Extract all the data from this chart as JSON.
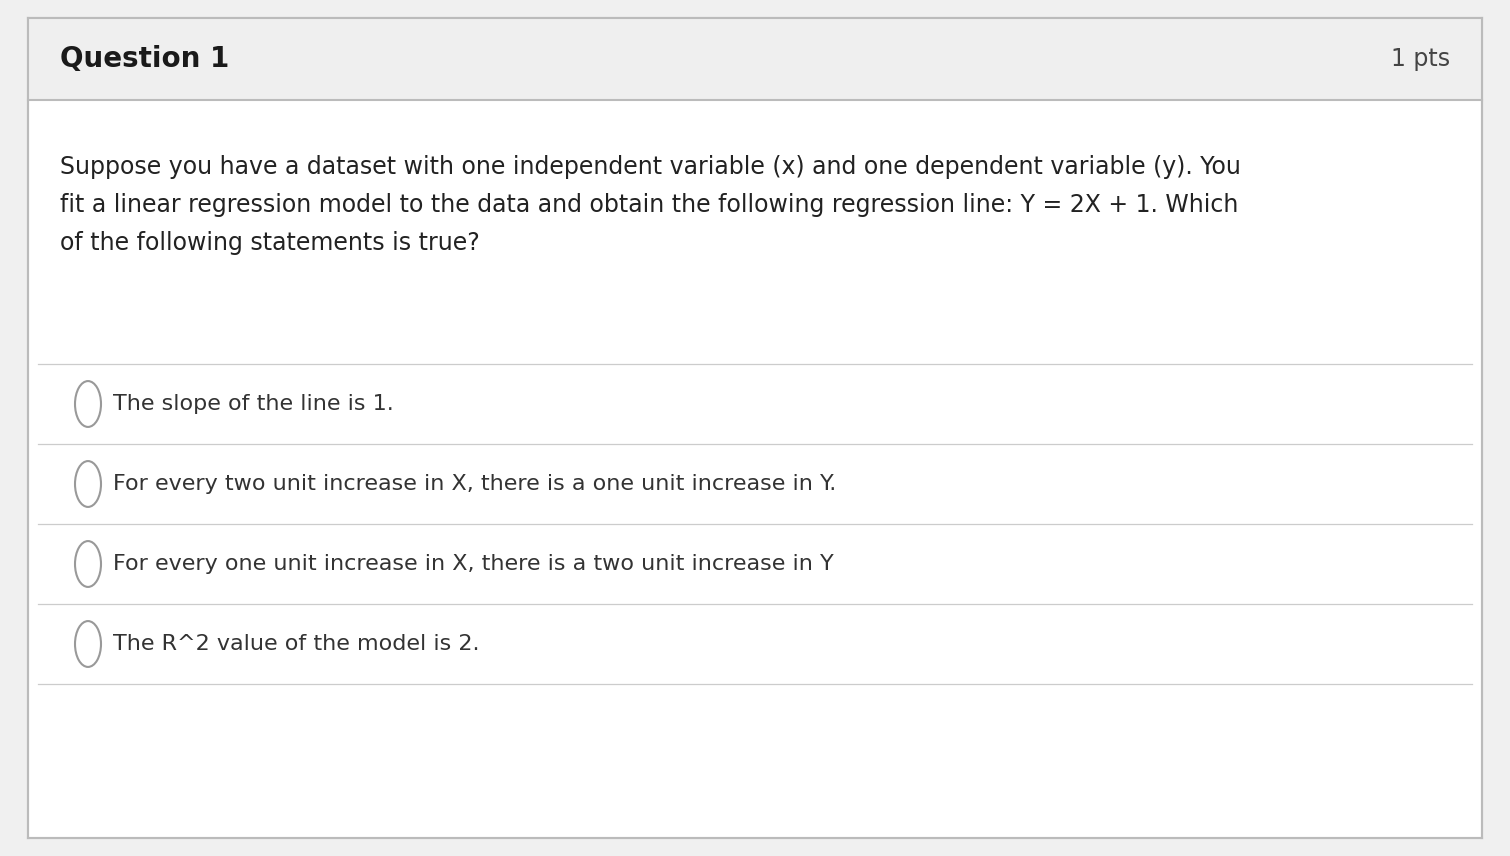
{
  "title": "Question 1",
  "pts": "1 pts",
  "question_text_lines": [
    "Suppose you have a dataset with one independent variable (x) and one dependent variable (y). You",
    "fit a linear regression model to the data and obtain the following regression line: Y = 2X + 1. Which",
    "of the following statements is true?"
  ],
  "options": [
    "The slope of the line is 1.",
    "For every two unit increase in X, there is a one unit increase in Y.",
    "For every one unit increase in X, there is a two unit increase in Y",
    "The R^2 value of the model is 2."
  ],
  "outer_bg": "#f0f0f0",
  "inner_bg": "#ffffff",
  "header_bg": "#efefef",
  "border_color": "#bbbbbb",
  "divider_color": "#cccccc",
  "title_color": "#1a1a1a",
  "pts_color": "#444444",
  "question_color": "#222222",
  "option_color": "#333333",
  "circle_color": "#999999",
  "font_size_title": 20,
  "font_size_pts": 17,
  "font_size_question": 17,
  "font_size_option": 16
}
